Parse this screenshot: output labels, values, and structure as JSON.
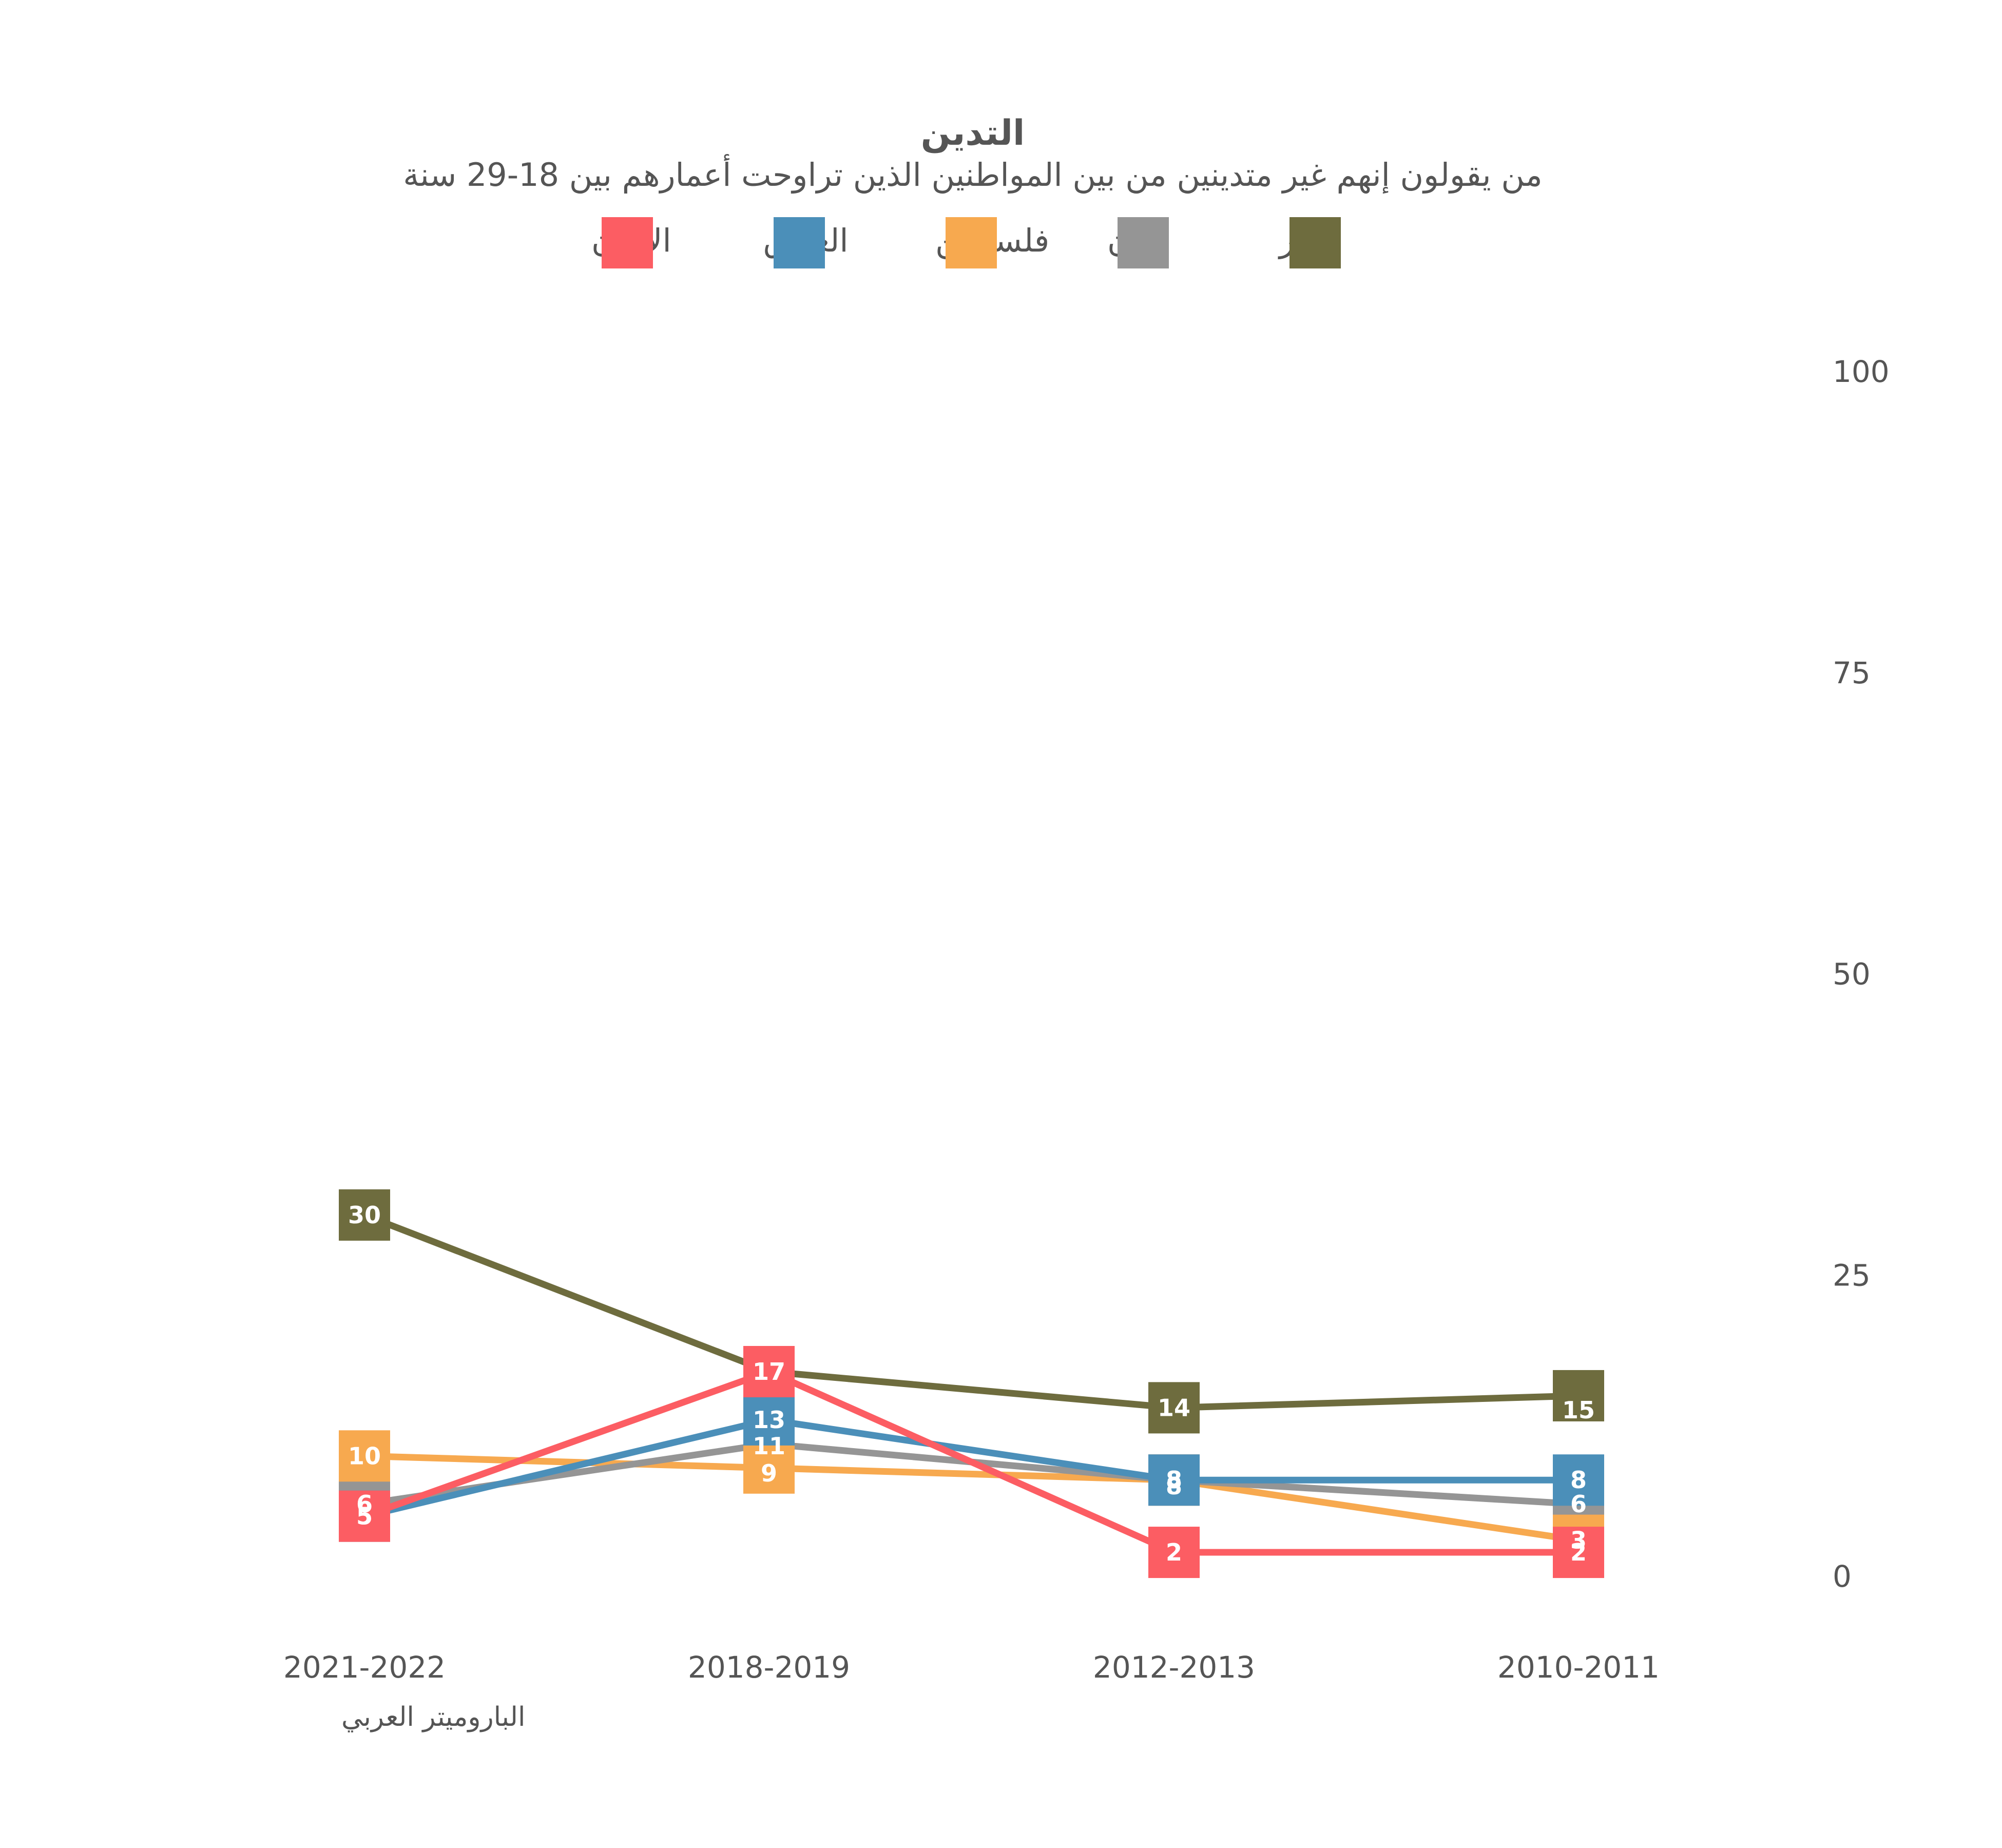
{
  "chart_data": {
    "type": "line",
    "title": "التدين",
    "subtitle": "من يقولون إنهم غير متدينين من بين المواطنين الذين تراوحت أعمارهم بين 18-29 سنة",
    "categories": [
      "2021-2022",
      "2018-2019",
      "2012-2013",
      "2010-2011"
    ],
    "ylim": [
      0,
      100
    ],
    "yticks": [
      0,
      25,
      50,
      75,
      100
    ],
    "grid": false,
    "legend_position": "top",
    "series": [
      {
        "name": "مصر",
        "color": "#6e6c3e",
        "values": [
          30,
          17,
          14,
          15
        ]
      },
      {
        "name": "لبنان",
        "color": "#959595",
        "values": [
          6,
          11,
          8,
          6
        ]
      },
      {
        "name": "فلسطين",
        "color": "#f7a94f",
        "values": [
          10,
          9,
          8,
          3
        ]
      },
      {
        "name": "العراق",
        "color": "#4b8fb9",
        "values": [
          5,
          13,
          8,
          8
        ]
      },
      {
        "name": "الأردن",
        "color": "#fc5d63",
        "values": [
          5,
          17,
          2,
          2
        ]
      }
    ],
    "legend_order": [
      "الأردن",
      "العراق",
      "فلسطين",
      "لبنان",
      "مصر"
    ],
    "source": "الباروميتر العربي"
  }
}
